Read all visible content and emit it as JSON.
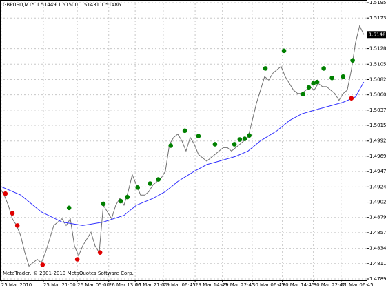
{
  "chart_data": {
    "type": "line",
    "symbol": "GBPUSD,M15",
    "ohlc": [
      1.51449,
      {
        "value": 1.515,
        "label": "1.51500"
      },
      1.51431,
      1.51486
    ],
    "current_price": 1.51486,
    "footer": "MetaTrader, © 2001-2010 MetaQuotes Software Corp.",
    "xlim": [
      0,
      88.7
    ],
    "ylim": [
      1.4789,
      1.51955
    ],
    "grid": true,
    "xticks": [
      {
        "value": 0.3,
        "label": "25 Mar 2010"
      },
      {
        "value": 10.5,
        "label": "25 Mar 21:00"
      },
      {
        "value": 18.7,
        "label": "26 Mar 05:00"
      },
      {
        "value": 26.3,
        "label": "26 Mar 13:00"
      },
      {
        "value": 32.7,
        "label": "26 Mar 21:00"
      },
      {
        "value": 39.5,
        "label": "29 Mar 06:45"
      },
      {
        "value": 47.2,
        "label": "29 Mar 14:45"
      },
      {
        "value": 53.8,
        "label": "29 Mar 22:45"
      },
      {
        "value": 61,
        "label": "30 Mar 06:45"
      },
      {
        "value": 68.3,
        "label": "30 Mar 14:45"
      },
      {
        "value": 75.8,
        "label": "30 Mar 22:45"
      },
      {
        "value": 82.5,
        "label": "31 Mar 06:45"
      }
    ],
    "yticks": [
      1.51955,
      {
        "value": 1.5173,
        "label": "1.51730"
      },
      {
        "value": 1.5128,
        "label": "1.51280"
      },
      {
        "value": 1.5105,
        "label": "1.51050"
      },
      1.50825,
      {
        "value": 1.506,
        "label": "1.50600"
      },
      1.50375,
      {
        "value": 1.5015,
        "label": "1.50150"
      },
      {
        "value": 1.4992,
        "label": "1.49920"
      },
      1.49695,
      {
        "value": 1.4947,
        "label": "1.49470"
      },
      1.49245,
      {
        "value": 1.4902,
        "label": "1.49020"
      },
      1.48795,
      {
        "value": 1.4857,
        "label": "1.48570"
      },
      {
        "value": 1.4834,
        "label": "1.48340"
      },
      1.48115,
      {
        "value": 1.4789,
        "label": "1.47890"
      }
    ],
    "series": [
      {
        "type": "line",
        "color": "#707070",
        "x": [
          0,
          1,
          2,
          3,
          4,
          5,
          6,
          7,
          8,
          9,
          10,
          11,
          12,
          13,
          14,
          15,
          16,
          17,
          18,
          19,
          20,
          21,
          22,
          23,
          24,
          25,
          26,
          27,
          28,
          29,
          30,
          31,
          32,
          33,
          34,
          35,
          36,
          37,
          38,
          39,
          40,
          41,
          42,
          43,
          44,
          45,
          46,
          47,
          48,
          49,
          50,
          51,
          52,
          53,
          54,
          55,
          56,
          57,
          58,
          59,
          60,
          61,
          62,
          63,
          64,
          65,
          66,
          67,
          68,
          69,
          70,
          71,
          72,
          73,
          74,
          75,
          76,
          77,
          78,
          79,
          80,
          81,
          82,
          83,
          84,
          85,
          86,
          87,
          88
        ],
        "values": [
          1.49225,
          1.49125,
          1.48976,
          1.48776,
          1.48677,
          1.48527,
          1.48278,
          1.48079,
          1.48129,
          1.48179,
          1.48129,
          1.48278,
          1.48478,
          1.48677,
          1.48727,
          1.48776,
          1.48677,
          1.48776,
          1.48378,
          1.48229,
          1.48378,
          1.48478,
          1.48577,
          1.48378,
          1.48278,
          1.48976,
          1.48876,
          1.48776,
          1.48976,
          1.49075,
          1.48976,
          1.49175,
          1.49424,
          1.49274,
          1.49125,
          1.49125,
          1.49175,
          1.49274,
          1.49324,
          1.49374,
          1.49474,
          1.49872,
          1.49972,
          1.50021,
          1.49922,
          1.49772,
          1.49972,
          1.49872,
          1.49723,
          1.49673,
          1.49623,
          1.49673,
          1.49723,
          1.49772,
          1.49822,
          1.49822,
          1.49772,
          1.49822,
          1.49872,
          1.49922,
          1.49972,
          1.50221,
          1.5047,
          1.50669,
          1.50868,
          1.50818,
          1.50918,
          1.50968,
          1.51017,
          1.50868,
          1.50768,
          1.50669,
          1.50619,
          1.50619,
          1.50669,
          1.50719,
          1.50669,
          1.50768,
          1.50719,
          1.50719,
          1.50669,
          1.50619,
          1.50519,
          1.50619,
          1.50669,
          1.50968,
          1.51366,
          1.51615,
          1.51486
        ]
      },
      {
        "type": "line",
        "color": "#3030ff",
        "x": [
          0,
          5,
          10,
          15,
          20,
          25,
          30,
          33,
          37,
          40,
          43,
          47,
          50,
          53,
          57,
          60,
          63,
          67,
          70,
          73,
          77,
          80,
          83,
          86,
          88
        ],
        "values": [
          1.49255,
          1.49125,
          1.48876,
          1.48727,
          1.48677,
          1.48727,
          1.48826,
          1.48976,
          1.49075,
          1.49175,
          1.49324,
          1.49474,
          1.49573,
          1.49623,
          1.49693,
          1.49772,
          1.49922,
          1.50071,
          1.50221,
          1.5032,
          1.5039,
          1.5044,
          1.5049,
          1.50569,
          1.50788
        ]
      },
      {
        "type": "scatter",
        "color": "#008000",
        "x": [
          16.7,
          25,
          29.2,
          30.8,
          33.3,
          36.3,
          38.3,
          41.3,
          44.7,
          48,
          52,
          56.7,
          58,
          59.2,
          60.3,
          64.2,
          68.7,
          73.3,
          74.7,
          75.8,
          76.7,
          78.3,
          80.3,
          83,
          85.3
        ],
        "values": [
          1.48936,
          1.48996,
          1.49035,
          1.49095,
          1.49235,
          1.49294,
          1.49354,
          1.49852,
          1.50071,
          1.49992,
          1.49872,
          1.49872,
          1.49942,
          1.49952,
          1.50002,
          1.50988,
          1.51247,
          1.50609,
          1.50709,
          1.50768,
          1.50788,
          1.50988,
          1.50848,
          1.50868,
          1.51107
        ]
      },
      {
        "type": "scatter",
        "color": "#e00000",
        "x": [
          1.3,
          3,
          4.2,
          10.3,
          18.7,
          24.2,
          85
        ],
        "values": [
          1.49145,
          1.48856,
          1.48677,
          1.48099,
          1.48179,
          1.48278,
          1.50549
        ]
      }
    ]
  }
}
